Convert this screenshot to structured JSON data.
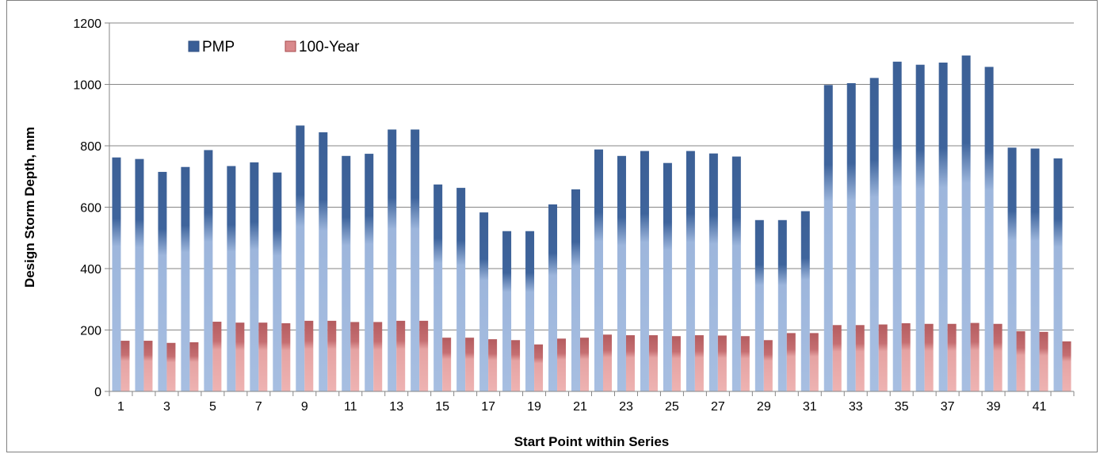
{
  "chart_data": {
    "type": "bar",
    "xlabel": "Start Point within Series",
    "ylabel": "Design Storm Depth, mm",
    "ylim": [
      0,
      1200
    ],
    "yticks": [
      0,
      200,
      400,
      600,
      800,
      1000,
      1200
    ],
    "categories": [
      1,
      2,
      3,
      4,
      5,
      6,
      7,
      8,
      9,
      10,
      11,
      12,
      13,
      14,
      15,
      16,
      17,
      18,
      19,
      20,
      21,
      22,
      23,
      24,
      25,
      26,
      27,
      28,
      29,
      30,
      31,
      32,
      33,
      34,
      35,
      36,
      37,
      38,
      39,
      40,
      41,
      42
    ],
    "x_tick_labels": [
      "1",
      "3",
      "5",
      "7",
      "9",
      "11",
      "13",
      "15",
      "17",
      "19",
      "21",
      "23",
      "25",
      "27",
      "29",
      "31",
      "33",
      "35",
      "37",
      "39",
      "41"
    ],
    "grid": true,
    "legend_position": "top-left",
    "series": [
      {
        "name": "PMP",
        "color": "#3a5f97",
        "values": [
          762,
          757,
          715,
          731,
          786,
          734,
          746,
          713,
          866,
          844,
          767,
          774,
          853,
          853,
          674,
          663,
          583,
          522,
          522,
          609,
          658,
          788,
          767,
          783,
          744,
          783,
          775,
          765,
          558,
          558,
          587,
          998,
          1004,
          1021,
          1074,
          1064,
          1071,
          1094,
          1057,
          794,
          791,
          759
        ]
      },
      {
        "name": "100-Year",
        "color": "#d9898c",
        "values": [
          165,
          165,
          158,
          160,
          227,
          224,
          224,
          222,
          230,
          230,
          226,
          226,
          230,
          230,
          175,
          175,
          170,
          167,
          153,
          172,
          175,
          185,
          183,
          183,
          180,
          183,
          182,
          180,
          167,
          190,
          190,
          216,
          216,
          218,
          222,
          220,
          220,
          223,
          220,
          196,
          194,
          163
        ]
      }
    ]
  }
}
